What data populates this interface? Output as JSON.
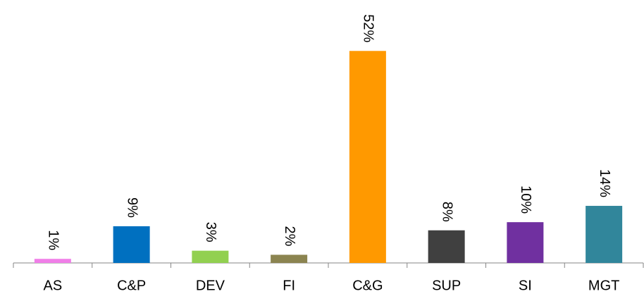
{
  "chart_data": {
    "type": "bar",
    "categories": [
      "AS",
      "C&P",
      "DEV",
      "FI",
      "C&G",
      "SUP",
      "SI",
      "MGT"
    ],
    "values": [
      1,
      9,
      3,
      2,
      52,
      8,
      10,
      14
    ],
    "value_labels": [
      "1%",
      "9%",
      "3%",
      "2%",
      "52%",
      "8%",
      "10%",
      "14%"
    ],
    "colors": [
      "#f07ee8",
      "#0070c0",
      "#92d050",
      "#8b8450",
      "#ff9900",
      "#404040",
      "#7030a0",
      "#31869b"
    ],
    "ylim": [
      0,
      60
    ]
  }
}
